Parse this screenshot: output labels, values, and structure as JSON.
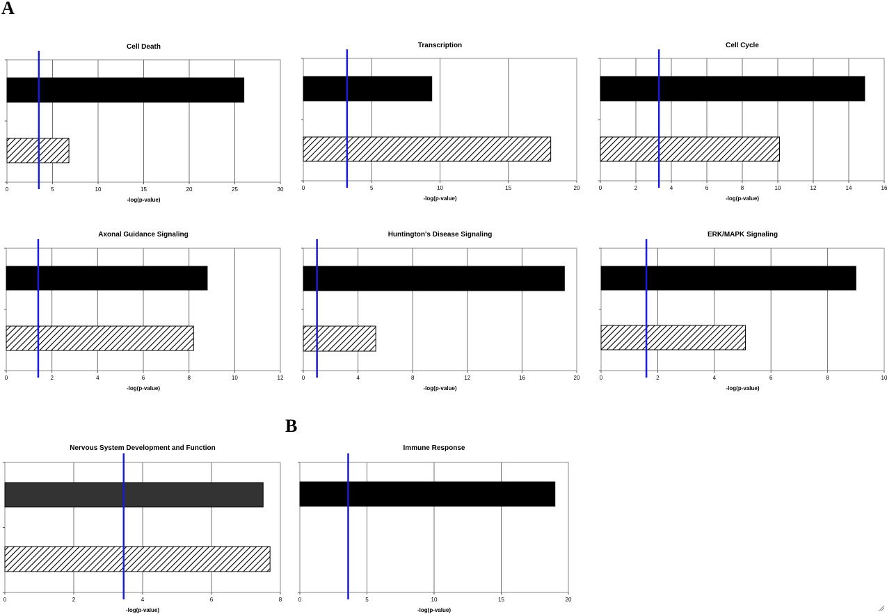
{
  "panel_labels": {
    "a": "A",
    "b": "B"
  },
  "chart_data": [
    {
      "type": "bar",
      "orientation": "horizontal",
      "title": "Cell Death",
      "xlabel": "-log(p-value)",
      "xlim": [
        0,
        30
      ],
      "xticks": [
        0,
        5,
        10,
        15,
        20,
        25,
        30
      ],
      "series": [
        {
          "values": [
            26
          ],
          "fill": "solid"
        },
        {
          "values": [
            6.8
          ],
          "fill": "hatched"
        }
      ],
      "threshold": 3.5,
      "threshold_color": "#1a1adb",
      "grid": true
    },
    {
      "type": "bar",
      "orientation": "horizontal",
      "title": "Transcription",
      "xlabel": "-log(p-value)",
      "xlim": [
        0,
        20
      ],
      "xticks": [
        0,
        5,
        10,
        15,
        20
      ],
      "series": [
        {
          "values": [
            9.4
          ],
          "fill": "solid"
        },
        {
          "values": [
            18.1
          ],
          "fill": "hatched"
        }
      ],
      "threshold": 3.2,
      "threshold_color": "#1a1adb",
      "grid": true
    },
    {
      "type": "bar",
      "orientation": "horizontal",
      "title": "Cell Cycle",
      "xlabel": "-log(p-value)",
      "xlim": [
        0,
        16
      ],
      "xticks": [
        0,
        2,
        4,
        6,
        8,
        10,
        12,
        14,
        16
      ],
      "series": [
        {
          "values": [
            14.9
          ],
          "fill": "solid"
        },
        {
          "values": [
            10.1
          ],
          "fill": "hatched"
        }
      ],
      "threshold": 3.3,
      "threshold_color": "#1a1adb",
      "grid": true
    },
    {
      "type": "bar",
      "orientation": "horizontal",
      "title": "Axonal Guidance Signaling",
      "xlabel": "-log(p-value)",
      "xlim": [
        0,
        12
      ],
      "xticks": [
        0,
        2,
        4,
        6,
        8,
        10,
        12
      ],
      "series": [
        {
          "values": [
            8.8
          ],
          "fill": "solid"
        },
        {
          "values": [
            8.2
          ],
          "fill": "hatched"
        }
      ],
      "threshold": 1.4,
      "threshold_color": "#1a1adb",
      "grid": true
    },
    {
      "type": "bar",
      "orientation": "horizontal",
      "title": "Huntington's Disease Signaling",
      "xlabel": "-log(p-value)",
      "xlim": [
        0,
        20
      ],
      "xticks": [
        0,
        4,
        8,
        12,
        16,
        20
      ],
      "series": [
        {
          "values": [
            19.1
          ],
          "fill": "solid"
        },
        {
          "values": [
            5.3
          ],
          "fill": "hatched"
        }
      ],
      "threshold": 1.0,
      "threshold_color": "#1a1adb",
      "grid": true
    },
    {
      "type": "bar",
      "orientation": "horizontal",
      "title": "ERK/MAPK Signaling",
      "xlabel": "-log(p-value)",
      "xlim": [
        0,
        10
      ],
      "xticks": [
        0,
        2,
        4,
        6,
        8,
        10
      ],
      "series": [
        {
          "values": [
            9.0
          ],
          "fill": "solid"
        },
        {
          "values": [
            5.1
          ],
          "fill": "hatched"
        }
      ],
      "threshold": 1.6,
      "threshold_color": "#1a1adb",
      "grid": true
    },
    {
      "type": "bar",
      "orientation": "horizontal",
      "title": "Nervous System Development and Function",
      "xlabel": "-log(p-value)",
      "xlim": [
        0,
        8
      ],
      "xticks": [
        0,
        2,
        4,
        6,
        8
      ],
      "series": [
        {
          "values": [
            7.5
          ],
          "fill": "solid-gray"
        },
        {
          "values": [
            7.7
          ],
          "fill": "hatched"
        }
      ],
      "threshold": 3.45,
      "threshold_color": "#1a1adb",
      "grid": true
    },
    {
      "type": "bar",
      "orientation": "horizontal",
      "title": "Immune Response",
      "xlabel": "-log(p-value)",
      "xlim": [
        0,
        20
      ],
      "xticks": [
        0,
        5,
        10,
        15,
        20
      ],
      "series": [
        {
          "values": [
            19
          ],
          "fill": "solid"
        }
      ],
      "threshold": 3.6,
      "threshold_color": "#1a1adb",
      "grid": true
    }
  ]
}
